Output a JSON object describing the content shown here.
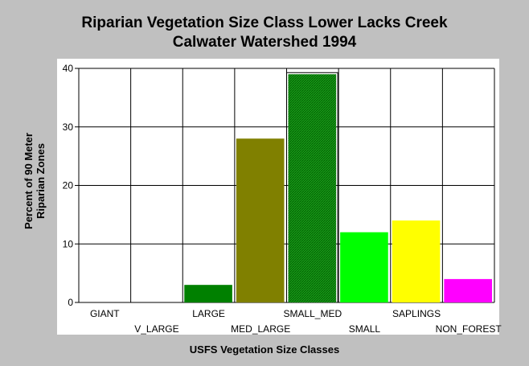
{
  "chart_data": {
    "type": "bar",
    "title": "Riparian Vegetation Size Class Lower Lacks Creek",
    "subtitle": "Calwater Watershed 1994",
    "xlabel": "USFS Vegetation Size Classes",
    "ylabel": "Percent of 90 Meter Riparian Zones",
    "ylabel_lines": [
      "Percent of 90 Meter",
      "Riparian Zones"
    ],
    "ylim": [
      0,
      40
    ],
    "yticks": [
      0,
      10,
      20,
      30,
      40
    ],
    "ytick_labels": [
      "0",
      "10",
      "20",
      "30",
      "40"
    ],
    "grid": true,
    "categories": [
      "GIANT",
      "V_LARGE",
      "LARGE",
      "MED_LARGE",
      "SMALL_MED",
      "SMALL",
      "SAPLINGS",
      "NON_FOREST"
    ],
    "values": [
      0,
      0,
      3,
      28,
      39,
      12,
      14,
      4
    ],
    "colors": [
      "#008000",
      "#008000",
      "#008000",
      "#808000",
      "#1a9a1a",
      "#00ff00",
      "#ffff00",
      "#ff00ff"
    ],
    "highlighted_category": "SMALL_MED"
  }
}
